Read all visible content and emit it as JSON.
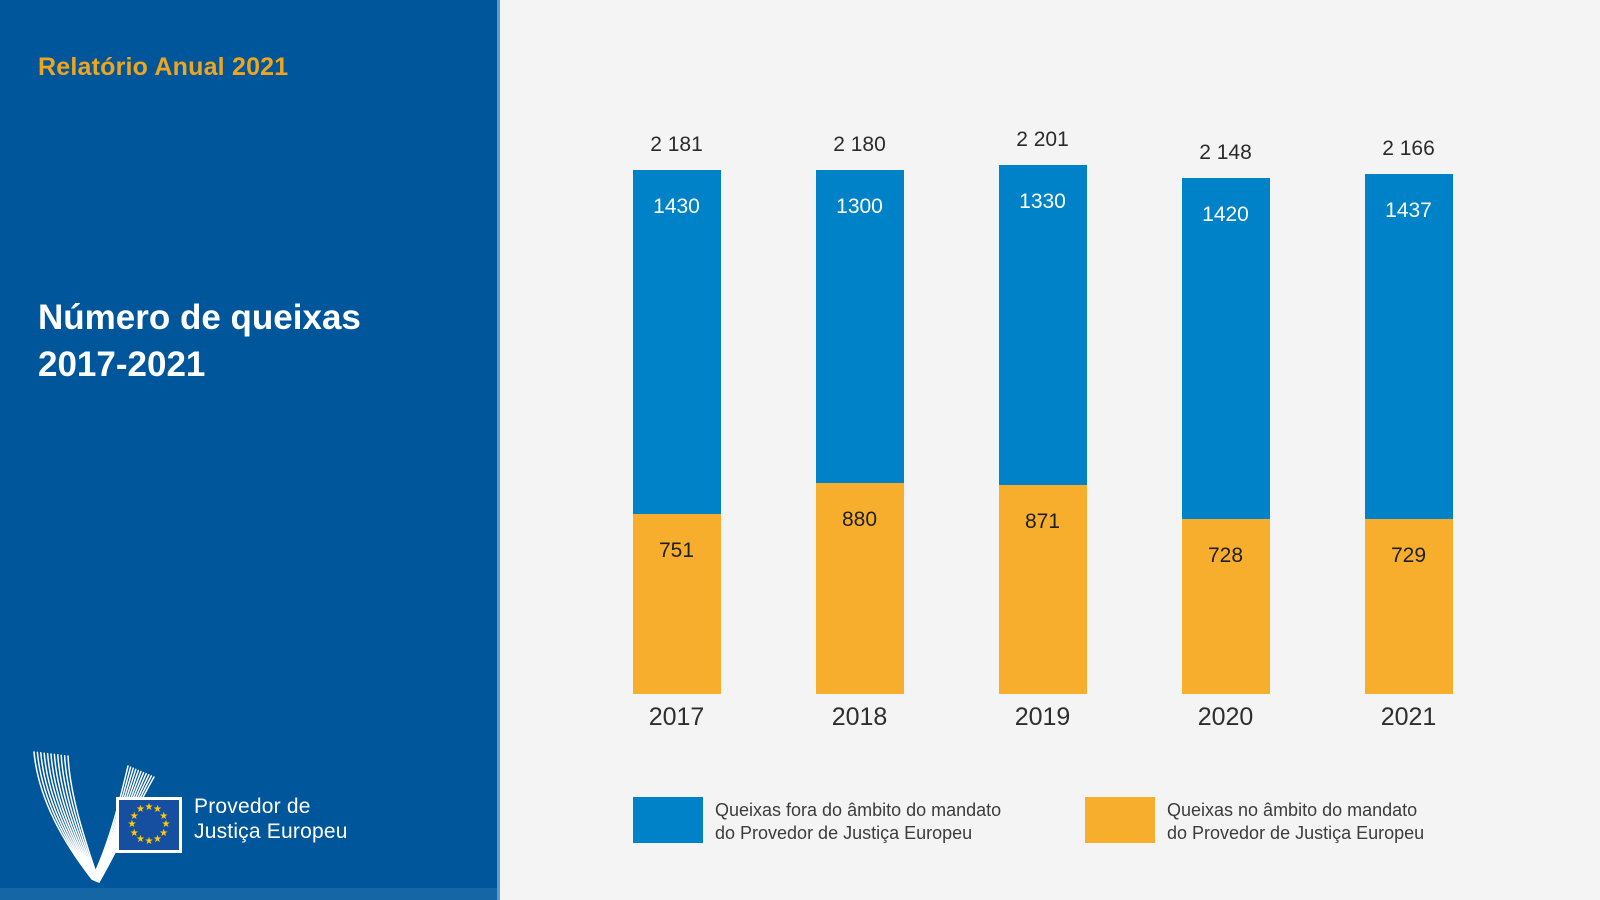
{
  "sidebar": {
    "report_title": "Relatório Anual 2021",
    "chart_title_line1": "Número de queixas",
    "chart_title_line2": "2017-2021",
    "logo": {
      "org_line1": "Provedor de",
      "org_line2": "Justiça Europeu"
    }
  },
  "colors": {
    "sidebar_bg": "#00569a",
    "sidebar_bottom_strip": "#1467a4",
    "divider_light_blue": "#5e9bcd",
    "main_bg": "#f4f4f5",
    "accent_orange_title": "#f0a51e",
    "bar_blue": "#0082c9",
    "bar_orange": "#f8ae2d",
    "eu_flag_blue": "#164f9f",
    "eu_star_yellow": "#ffcc00"
  },
  "chart_data": {
    "type": "bar",
    "stacked": true,
    "title": "Número de queixas 2017-2021",
    "categories": [
      "2017",
      "2018",
      "2019",
      "2020",
      "2021"
    ],
    "series": [
      {
        "name": "Queixas fora do âmbito do mandato do Provedor de Justiça Europeu",
        "stack_position": "top",
        "color": "#0082c9",
        "label_color": "#ffffff",
        "values": [
          1430,
          1300,
          1330,
          1420,
          1437
        ]
      },
      {
        "name": "Queixas no âmbito do mandato do Provedor de Justiça Europeu",
        "stack_position": "bottom",
        "color": "#f8ae2d",
        "label_color": "#1f1f1f",
        "values": [
          751,
          880,
          871,
          728,
          729
        ]
      }
    ],
    "totals": [
      2181,
      2180,
      2201,
      2148,
      2166
    ],
    "total_labels": [
      "2 181",
      "2 180",
      "2 201",
      "2 148",
      "2 166"
    ],
    "legend": [
      {
        "color": "#0082c9",
        "line1": "Queixas fora do âmbito do mandato",
        "line2": "do Provedor de Justiça Europeu"
      },
      {
        "color": "#f8ae2d",
        "line1": "Queixas no âmbito do mandato",
        "line2": "do Provedor de Justiça Europeu"
      }
    ],
    "axis": {
      "grid": false,
      "value_axis_shown": false
    },
    "legend_position": "bottom"
  }
}
